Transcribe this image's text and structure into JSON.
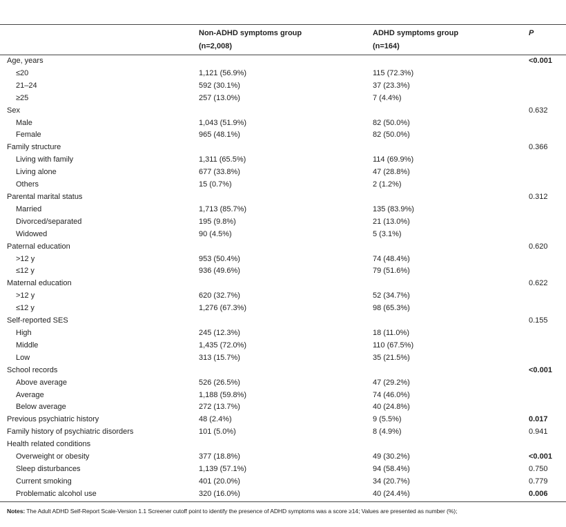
{
  "header": {
    "columns": [
      {
        "title": "Non-ADHD symptoms group",
        "subtitle": "(n=2,008)"
      },
      {
        "title": "ADHD symptoms group",
        "subtitle": "(n=164)"
      },
      {
        "title": "P"
      }
    ]
  },
  "sections": [
    {
      "label": "Age, years",
      "p": "<0.001",
      "significant": true,
      "items": [
        {
          "label": "≤20",
          "non_adhd": "1,121 (56.9%)",
          "adhd": "115 (72.3%)"
        },
        {
          "label": "21–24",
          "non_adhd": "592 (30.1%)",
          "adhd": "37 (23.3%)"
        },
        {
          "label": "≥25",
          "non_adhd": "257 (13.0%)",
          "adhd": "7 (4.4%)"
        }
      ]
    },
    {
      "label": "Sex",
      "p": "0.632",
      "items": [
        {
          "label": "Male",
          "non_adhd": "1,043 (51.9%)",
          "adhd": "82 (50.0%)"
        },
        {
          "label": "Female",
          "non_adhd": "965 (48.1%)",
          "adhd": "82 (50.0%)"
        }
      ]
    },
    {
      "label": "Family structure",
      "p": "0.366",
      "items": [
        {
          "label": "Living with family",
          "non_adhd": "1,311 (65.5%)",
          "adhd": "114 (69.9%)"
        },
        {
          "label": "Living alone",
          "non_adhd": "677 (33.8%)",
          "adhd": "47 (28.8%)"
        },
        {
          "label": "Others",
          "non_adhd": "15 (0.7%)",
          "adhd": "2 (1.2%)"
        }
      ]
    },
    {
      "label": "Parental marital status",
      "p": "0.312",
      "items": [
        {
          "label": "Married",
          "non_adhd": "1,713 (85.7%)",
          "adhd": "135 (83.9%)"
        },
        {
          "label": "Divorced/separated",
          "non_adhd": "195 (9.8%)",
          "adhd": "21 (13.0%)"
        },
        {
          "label": "Widowed",
          "non_adhd": "90 (4.5%)",
          "adhd": "5 (3.1%)"
        }
      ]
    },
    {
      "label": "Paternal education",
      "p": "0.620",
      "items": [
        {
          "label": ">12 y",
          "non_adhd": "953 (50.4%)",
          "adhd": "74 (48.4%)"
        },
        {
          "label": "≤12 y",
          "non_adhd": "936 (49.6%)",
          "adhd": "79 (51.6%)"
        }
      ]
    },
    {
      "label": "Maternal education",
      "p": "0.622",
      "items": [
        {
          "label": ">12 y",
          "non_adhd": "620 (32.7%)",
          "adhd": "52 (34.7%)"
        },
        {
          "label": "≤12 y",
          "non_adhd": "1,276 (67.3%)",
          "adhd": "98 (65.3%)"
        }
      ]
    },
    {
      "label": "Self-reported SES",
      "p": "0.155",
      "items": [
        {
          "label": "High",
          "non_adhd": "245 (12.3%)",
          "adhd": "18 (11.0%)"
        },
        {
          "label": "Middle",
          "non_adhd": "1,435 (72.0%)",
          "adhd": "110 (67.5%)"
        },
        {
          "label": "Low",
          "non_adhd": "313 (15.7%)",
          "adhd": "35 (21.5%)"
        }
      ]
    },
    {
      "label": "School records",
      "p": "<0.001",
      "significant": true,
      "items": [
        {
          "label": "Above average",
          "non_adhd": "526 (26.5%)",
          "adhd": "47 (29.2%)"
        },
        {
          "label": "Average",
          "non_adhd": "1,188 (59.8%)",
          "adhd": "74 (46.0%)"
        },
        {
          "label": "Below average",
          "non_adhd": "272 (13.7%)",
          "adhd": "40 (24.8%)"
        }
      ]
    },
    {
      "label": "Previous psychiatric history",
      "non_adhd": "48 (2.4%)",
      "adhd": "9 (5.5%)",
      "p": "0.017",
      "significant": true
    },
    {
      "label": "Family history of psychiatric disorders",
      "non_adhd": "101 (5.0%)",
      "adhd": "8 (4.9%)",
      "p": "0.941"
    },
    {
      "label": "Health related conditions",
      "items": [
        {
          "label": "Overweight or obesity",
          "non_adhd": "377 (18.8%)",
          "adhd": "49 (30.2%)",
          "p": "<0.001",
          "significant": true
        },
        {
          "label": "Sleep disturbances",
          "non_adhd": "1,139 (57.1%)",
          "adhd": "94 (58.4%)",
          "p": "0.750"
        },
        {
          "label": "Current smoking",
          "non_adhd": "401 (20.0%)",
          "adhd": "34 (20.7%)",
          "p": "0.779"
        },
        {
          "label": "Problematic alcohol use",
          "non_adhd": "320 (16.0%)",
          "adhd": "40 (24.4%)",
          "p": "0.006",
          "significant": true
        }
      ]
    }
  ],
  "notes": {
    "label": "Notes:",
    "text": "The Adult ADHD Self-Report Scale-Version 1.1 Screener cutoff point to identify the presence of ADHD symptoms was a score ≥14; Values are presented as number (%);"
  }
}
